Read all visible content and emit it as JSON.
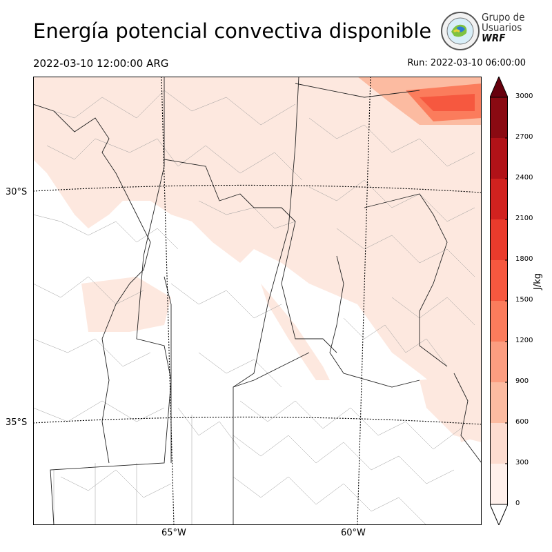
{
  "header": {
    "title": "Energía potencial convectiva disponible",
    "valid_time": "2022-03-10 12:00:00 ARG",
    "run_time": "Run: 2022-03-10 06:00:00"
  },
  "logo": {
    "line1": "Grupo de",
    "line2": "Usuarios",
    "line3": "WRF"
  },
  "map": {
    "lat_labels": [
      "30°S",
      "35°S"
    ],
    "lon_labels": [
      "65°W",
      "60°W"
    ]
  },
  "colorbar": {
    "unit": "J/kg",
    "ticks": [
      "0",
      "300",
      "600",
      "900",
      "1200",
      "1500",
      "1800",
      "2100",
      "2400",
      "2700",
      "3000"
    ],
    "colors": [
      "#fff0eb",
      "#fddcd0",
      "#fcbba1",
      "#fc9d80",
      "#fb7c5c",
      "#f6583f",
      "#ea3b2c",
      "#d1221f",
      "#b11218",
      "#8a0a12",
      "#67000d"
    ]
  }
}
